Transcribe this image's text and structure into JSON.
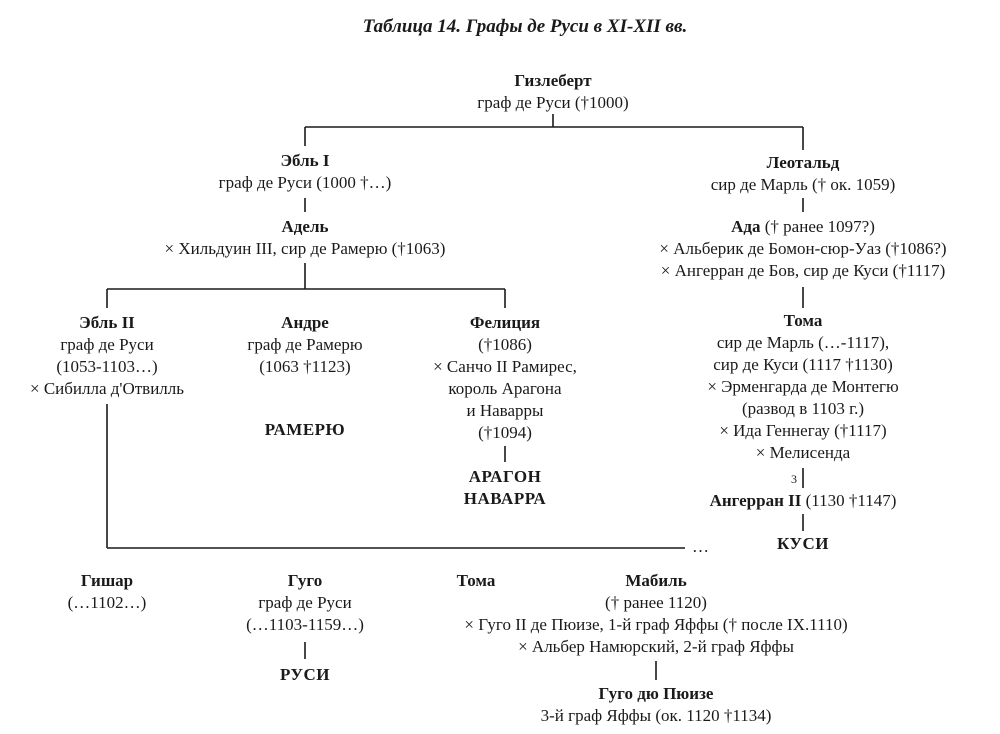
{
  "title": "Таблица 14. Графы де Руси в XI-XII вв.",
  "people": {
    "gizlebert": {
      "name": "Гизлеберт",
      "lines": [
        "граф де Руси (†1000)"
      ]
    },
    "ebl1": {
      "name": "Эбль I",
      "lines": [
        "граф де Руси (1000 †…)"
      ]
    },
    "leotald": {
      "name": "Леотальд",
      "lines": [
        "сир де Марль († ок. 1059)"
      ]
    },
    "adel": {
      "name": "Адель",
      "lines": [
        "× Хильдуин III, сир де Рамерю (†1063)"
      ]
    },
    "ada": {
      "name": "Ада",
      "name_suffix": " († ранее 1097?)",
      "lines": [
        "× Альберик де Бомон-сюр-Уаз (†1086?)",
        "× Ангерран де Бов, сир де Куси (†1117)"
      ]
    },
    "ebl2": {
      "name": "Эбль II",
      "lines": [
        "граф де Руси",
        "(1053-1103…)",
        "× Сибилла д'Отвилль"
      ]
    },
    "andre": {
      "name": "Андре",
      "lines": [
        "граф де Рамерю",
        "(1063 †1123)"
      ]
    },
    "felicia": {
      "name": "Фелиция",
      "lines": [
        "(†1086)",
        "× Санчо II Рамирес,",
        "король Арагона",
        "и Наварры",
        "(†1094)"
      ]
    },
    "toma1": {
      "name": "Тома",
      "lines": [
        "сир де Марль (…-1117),",
        "сир де Куси (1117 †1130)",
        "× Эрменгарда де Монтегю",
        "(развод в 1103 г.)",
        "× Ида Геннегау (†1117)",
        "× Мелисенда"
      ]
    },
    "angerran2": {
      "name": "Ангерран II",
      "name_suffix": " (1130 †1147)"
    },
    "gishar": {
      "name": "Гишар",
      "lines": [
        "(…1102…)"
      ]
    },
    "hugo": {
      "name": "Гуго",
      "lines": [
        "граф де Руси",
        "(…1103-1159…)"
      ]
    },
    "toma2": {
      "name": "Тома"
    },
    "mabil": {
      "name": "Мабиль",
      "lines": [
        "(† ранее 1120)",
        "× Гуго II де Пюизе, 1-й граф Яффы († после IX.1110)",
        "× Альбер Намюрский, 2-й граф Яффы"
      ]
    },
    "hugo_puiset": {
      "name": "Гуго дю Пюизе",
      "lines": [
        "3-й граф Яффы (ок. 1120 †1134)"
      ]
    }
  },
  "houses": {
    "ramerupt": "РАМЕРЮ",
    "aragon": "АРАГОН",
    "navarre": "НАВАРРА",
    "coucy": "КУСИ",
    "roucy": "РУСИ"
  },
  "annotations": {
    "ellipsis": "…",
    "marriage_number": "3"
  }
}
